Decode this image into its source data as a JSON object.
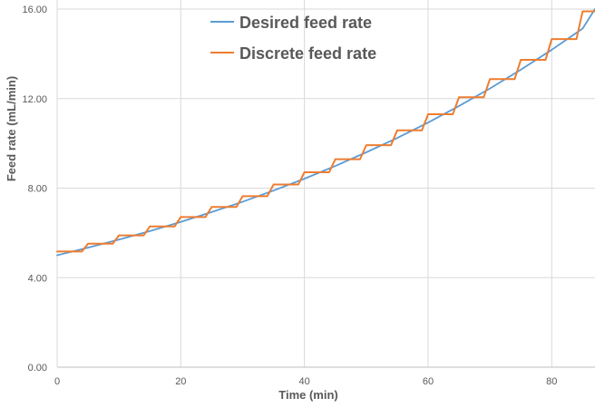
{
  "chart_data": {
    "type": "line",
    "title": "",
    "xlabel": "Time (min)",
    "ylabel": "Feed rate (mL/min)",
    "xlim": [
      0,
      87
    ],
    "ylim": [
      0,
      16
    ],
    "x_ticks": [
      0,
      20,
      40,
      60,
      80
    ],
    "x_tick_labels": [
      "0",
      "20",
      "40",
      "60",
      "80"
    ],
    "y_ticks": [
      0,
      4,
      8,
      12,
      16
    ],
    "y_tick_labels": [
      "0.00",
      "4.00",
      "8.00",
      "12.00",
      "16.00"
    ],
    "grid": true,
    "legend_position": "top-center",
    "series": [
      {
        "name": "Desired feed rate",
        "color": "#5b9bd5",
        "style": "smooth",
        "x": [
          0,
          5,
          10,
          15,
          20,
          25,
          30,
          35,
          40,
          45,
          50,
          55,
          60,
          65,
          70,
          75,
          80,
          85,
          87
        ],
        "y": [
          5.0,
          5.34,
          5.7,
          6.08,
          6.49,
          6.93,
          7.39,
          7.89,
          8.42,
          8.99,
          9.6,
          10.24,
          10.93,
          11.67,
          12.45,
          13.29,
          14.18,
          15.13,
          16.0
        ]
      },
      {
        "name": "Discrete feed rate",
        "color": "#ed7d31",
        "style": "step",
        "x": [
          0,
          5,
          10,
          15,
          20,
          25,
          30,
          35,
          40,
          45,
          50,
          55,
          60,
          65,
          70,
          75,
          80,
          85
        ],
        "y": [
          5.17,
          5.52,
          5.89,
          6.29,
          6.71,
          7.16,
          7.64,
          8.16,
          8.71,
          9.29,
          9.92,
          10.58,
          11.3,
          12.06,
          12.87,
          13.73,
          14.66,
          15.9
        ]
      }
    ]
  }
}
